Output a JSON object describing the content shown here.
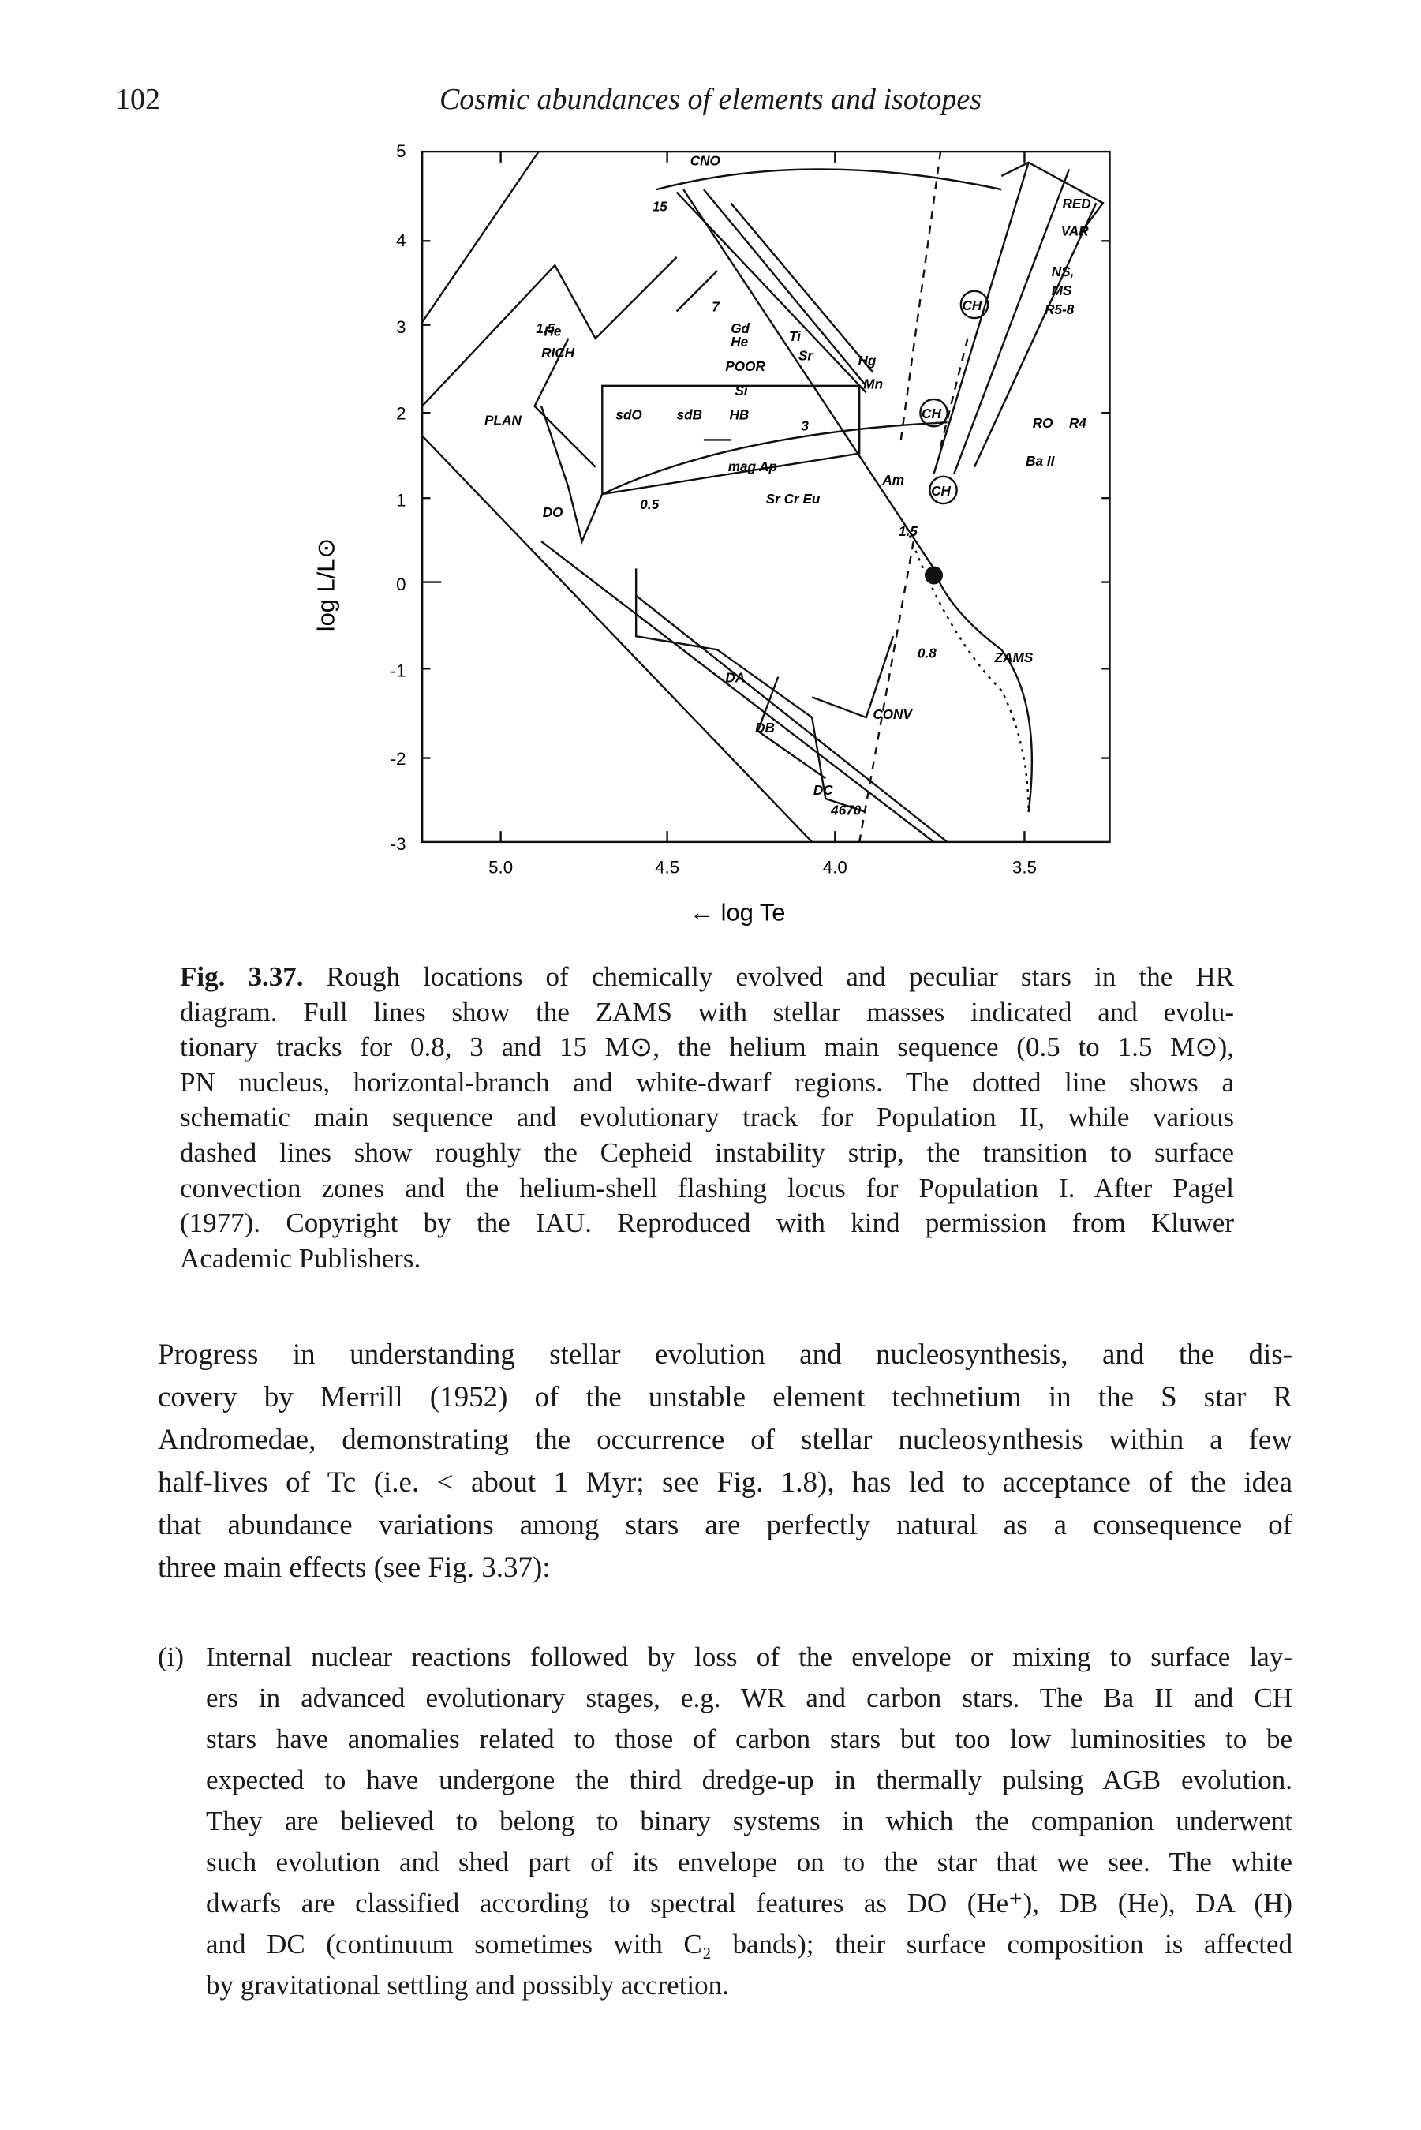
{
  "header": {
    "page_number": "102",
    "running_title": "Cosmic abundances of elements and isotopes"
  },
  "figure": {
    "y_axis_label": "log L/L⊙",
    "x_axis_label": "← log Te",
    "y_ticks": [
      "5",
      "4",
      "3",
      "2",
      "1",
      "0",
      "-1",
      "-2",
      "-3"
    ],
    "x_ticks": [
      "5.0",
      "4.5",
      "4.0",
      "3.5"
    ],
    "labels": [
      "CNO",
      "15",
      "RED",
      "VAR",
      "7",
      "Gd",
      "Ti",
      "Sr",
      "He",
      "RICH",
      "He",
      "POOR",
      "1.5",
      "Si",
      "Hg",
      "Mn",
      "NS,",
      "MS",
      "R5-8",
      "CH",
      "PLAN",
      "sdO",
      "sdB",
      "HB",
      "CH",
      "RO",
      "R4",
      "Ba II",
      "mag Ap",
      "Am",
      "Sr Cr Eu",
      "CH",
      "DO",
      "0.5",
      "1.5",
      "0.8",
      "ZAMS",
      "DA",
      "CONV",
      "DB",
      "DC",
      "4670",
      "3"
    ],
    "caption": {
      "label": "Fig. 3.37.",
      "lines": [
        "Rough locations of chemically evolved and peculiar stars in the HR",
        "diagram. Full lines show the ZAMS with stellar masses indicated and evolu-",
        "tionary tracks for 0.8, 3 and 15 M⊙, the helium main sequence (0.5 to 1.5 M⊙),",
        "PN nucleus, horizontal-branch and white-dwarf regions. The dotted line shows a",
        "schematic main sequence and evolutionary track for Population II, while various",
        "dashed lines show roughly the Cepheid instability strip, the transition to surface",
        "convection zones and the helium-shell flashing locus for Population I. After Pagel",
        "(1977). Copyright by the IAU. Reproduced with kind permission from Kluwer",
        "Academic Publishers."
      ]
    }
  },
  "body": {
    "paragraph_lines": [
      "Progress in understanding stellar evolution and nucleosynthesis, and the dis-",
      "covery by Merrill (1952) of the unstable element technetium in the S star R",
      "Andromedae, demonstrating the occurrence of stellar nucleosynthesis within a few",
      "half-lives of Tc (i.e. < about 1 Myr; see Fig. 1.8), has led to acceptance of the idea",
      "that abundance variations among stars are perfectly natural as a consequence of",
      "three main effects (see Fig. 3.37):"
    ]
  },
  "list": [
    {
      "marker": "(i)",
      "lines": [
        "Internal nuclear reactions followed by loss of the envelope or mixing to surface lay-",
        "ers in advanced evolutionary stages, e.g. WR and carbon stars. The Ba II and CH",
        "stars have anomalies related to those of carbon stars but too low luminosities to be",
        "expected to have undergone the third dredge-up in thermally pulsing AGB evolution.",
        "They are believed to belong to binary systems in which the companion underwent",
        "such evolution and shed part of its envelope on to the star that we see. The white",
        "dwarfs are classified according to spectral features as DO (He⁺), DB (He), DA (H)",
        "and DC (continuum sometimes with C₂ bands); their surface composition is affected",
        "by gravitational settling and possibly accretion."
      ]
    }
  ]
}
